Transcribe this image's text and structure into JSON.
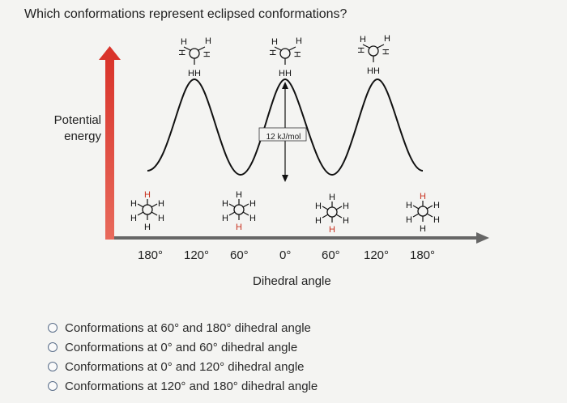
{
  "question": "Which conformations represent eclipsed conformations?",
  "y_axis_label_line1": "Potential",
  "y_axis_label_line2": "energy",
  "x_axis_label": "Dihedral angle",
  "energy_barrier": "12 kJ/mol",
  "angle_ticks": [
    "180°",
    "120°",
    "60°",
    "0°",
    "60°",
    "120°",
    "180°"
  ],
  "atom_label": "H",
  "eclipsed_bottom_label": "HH",
  "colors": {
    "arrow_red": "#d9342b",
    "axis_gray": "#666666",
    "radio_border": "#5a6e8a"
  },
  "options": [
    {
      "label": "Conformations at 60° and 180° dihedral angle"
    },
    {
      "label": "Conformations at 0° and 60° dihedral angle"
    },
    {
      "label": "Conformations at 0° and 120° dihedral angle"
    },
    {
      "label": "Conformations at 120° and 180° dihedral angle"
    }
  ]
}
